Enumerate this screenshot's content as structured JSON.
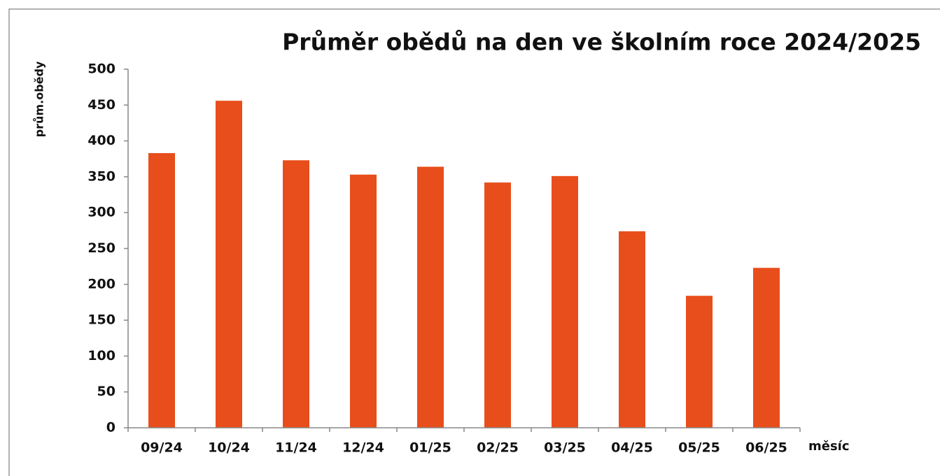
{
  "chart_data": {
    "type": "bar",
    "title": "Průměr obědů na den ve školním roce 2024/2025",
    "y_label": "prům.obědy",
    "x_label": "měsíc",
    "categories": [
      "09/24",
      "10/24",
      "11/24",
      "12/24",
      "01/25",
      "02/25",
      "03/25",
      "04/25",
      "05/25",
      "06/25"
    ],
    "values": [
      383,
      456,
      373,
      353,
      364,
      342,
      351,
      274,
      184,
      223
    ],
    "color": "#e84e1b",
    "ylim": [
      0,
      500
    ],
    "yticks": [
      0,
      50,
      100,
      150,
      200,
      250,
      300,
      350,
      400,
      450,
      500
    ],
    "grid": false
  }
}
